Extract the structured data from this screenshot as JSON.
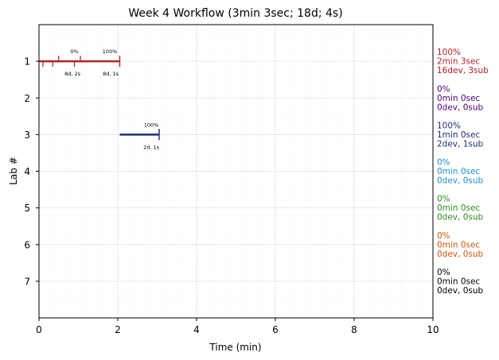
{
  "chart_data": {
    "type": "timeline",
    "title": "Week 4 Workflow (3min 3sec; 18d; 4s)",
    "xlabel": "Time (min)",
    "ylabel": "Lab #",
    "xlim": [
      0,
      10
    ],
    "ylim": [
      8,
      0
    ],
    "xticks": [
      0,
      2,
      4,
      6,
      8,
      10
    ],
    "yticks": [
      1,
      2,
      3,
      4,
      5,
      6,
      7
    ],
    "grid": true,
    "labs": [
      {
        "lab": 1,
        "color": "#b22222",
        "bar": [
          0,
          2.05
        ],
        "dev_ticks": [
          0.1,
          0.35,
          0.9
        ],
        "sub_ticks": [
          0.5,
          1.05
        ],
        "annotations": [
          {
            "x": 0.9,
            "text": "0%",
            "pos": "above"
          },
          {
            "x": 1.8,
            "text": "100%",
            "pos": "above"
          },
          {
            "x": 0.85,
            "text": "8d, 2s",
            "pos": "below"
          },
          {
            "x": 1.82,
            "text": "8d, 1s",
            "pos": "below"
          }
        ],
        "summary": [
          "100%",
          "2min 3sec",
          "16dev, 3sub"
        ]
      },
      {
        "lab": 2,
        "color": "#4b0082",
        "bar": null,
        "dev_ticks": [],
        "sub_ticks": [],
        "annotations": [],
        "summary": [
          "0%",
          "0min 0sec",
          "0dev, 0sub"
        ]
      },
      {
        "lab": 3,
        "color": "#1f2d7a",
        "bar": [
          2.05,
          3.05
        ],
        "dev_ticks": [],
        "sub_ticks": [
          3.05
        ],
        "annotations": [
          {
            "x": 2.85,
            "text": "100%",
            "pos": "above"
          },
          {
            "x": 2.85,
            "text": "2d, 1s",
            "pos": "below"
          }
        ],
        "summary": [
          "100%",
          "1min 0sec",
          "2dev, 1sub"
        ]
      },
      {
        "lab": 4,
        "color": "#1e90d0",
        "bar": null,
        "dev_ticks": [],
        "sub_ticks": [],
        "annotations": [],
        "summary": [
          "0%",
          "0min 0sec",
          "0dev, 0sub"
        ]
      },
      {
        "lab": 5,
        "color": "#2e8b22",
        "bar": null,
        "dev_ticks": [],
        "sub_ticks": [],
        "annotations": [],
        "summary": [
          "0%",
          "0min 0sec",
          "0dev, 0sub"
        ]
      },
      {
        "lab": 6,
        "color": "#d2550a",
        "bar": null,
        "dev_ticks": [],
        "sub_ticks": [],
        "annotations": [],
        "summary": [
          "0%",
          "0min 0sec",
          "0dev, 0sub"
        ]
      },
      {
        "lab": 7,
        "color": "#000000",
        "bar": null,
        "dev_ticks": [],
        "sub_ticks": [],
        "annotations": [],
        "summary": [
          "0%",
          "0min 0sec",
          "0dev, 0sub"
        ]
      }
    ]
  }
}
